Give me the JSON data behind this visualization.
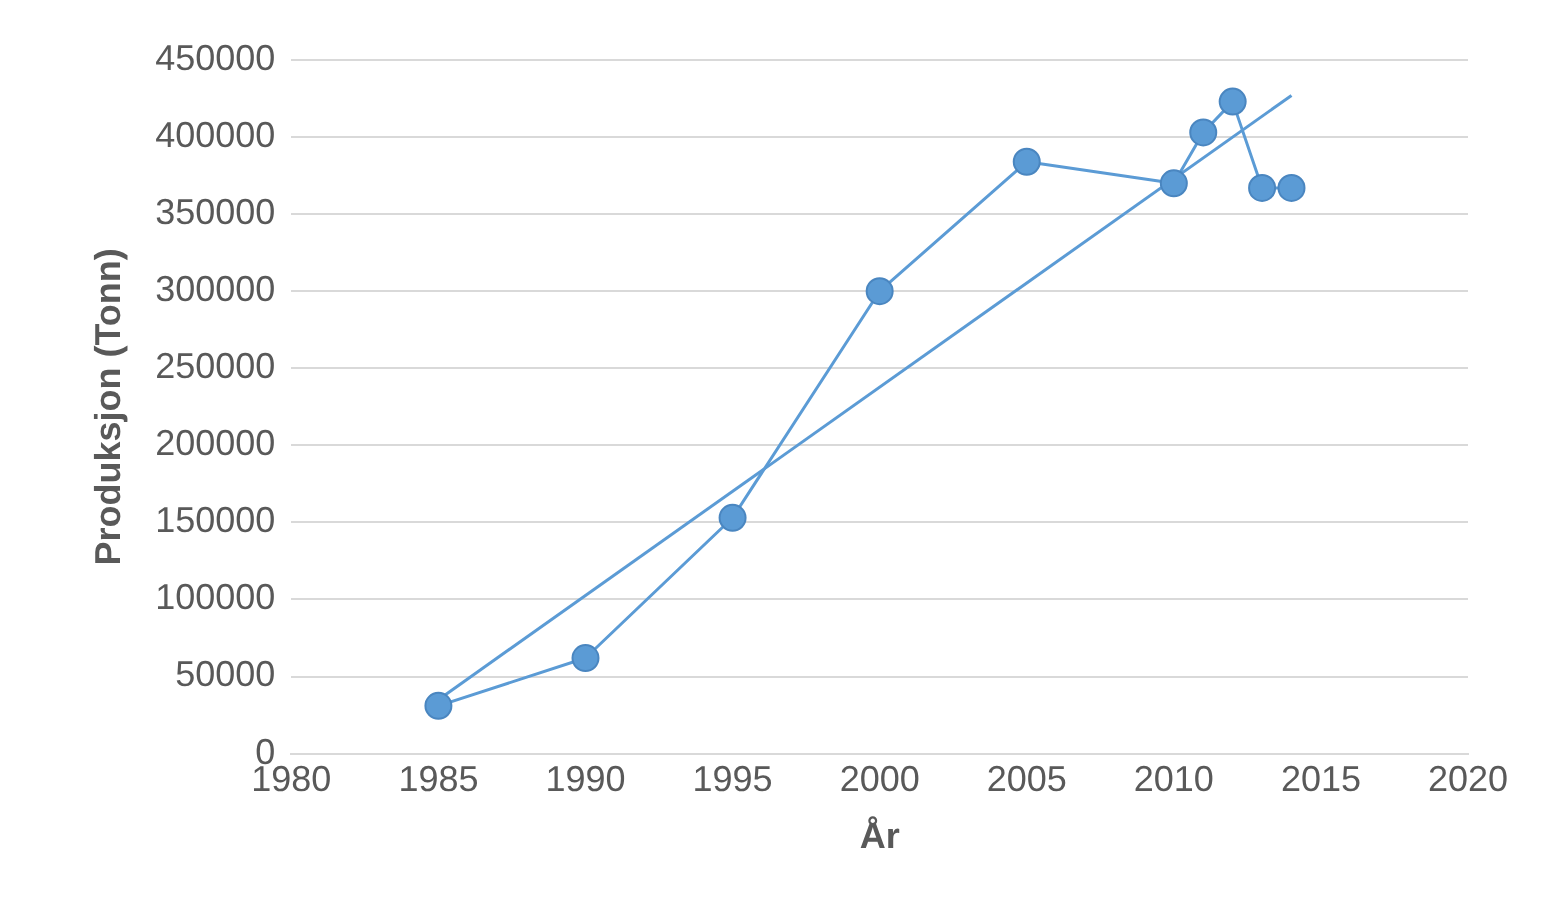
{
  "chart_data": {
    "type": "line",
    "xlabel": "År",
    "ylabel": "Produksjon (Tonn)",
    "xlim": [
      1980,
      2020
    ],
    "xticks": [
      1980,
      1985,
      1990,
      1995,
      2000,
      2005,
      2010,
      2015,
      2020
    ],
    "ylim": [
      0,
      450000
    ],
    "yticks": [
      0,
      50000,
      100000,
      150000,
      200000,
      250000,
      300000,
      350000,
      400000,
      450000
    ],
    "grid": "y",
    "legend": false,
    "marker": "circle",
    "line_style": "solid",
    "series": [
      {
        "color": "#5b9bd5",
        "x": [
          1985,
          1990,
          1995,
          2000,
          2005,
          2010,
          2011,
          2012,
          2013,
          2014
        ],
        "values": [
          31000,
          62000,
          153000,
          300000,
          384000,
          370000,
          403000,
          423000,
          367000,
          367000
        ]
      },
      {
        "type": "line",
        "marker": "none",
        "color": "#5b9bd5",
        "x": [
          1985,
          2014
        ],
        "values": [
          35000,
          427000
        ]
      }
    ]
  }
}
